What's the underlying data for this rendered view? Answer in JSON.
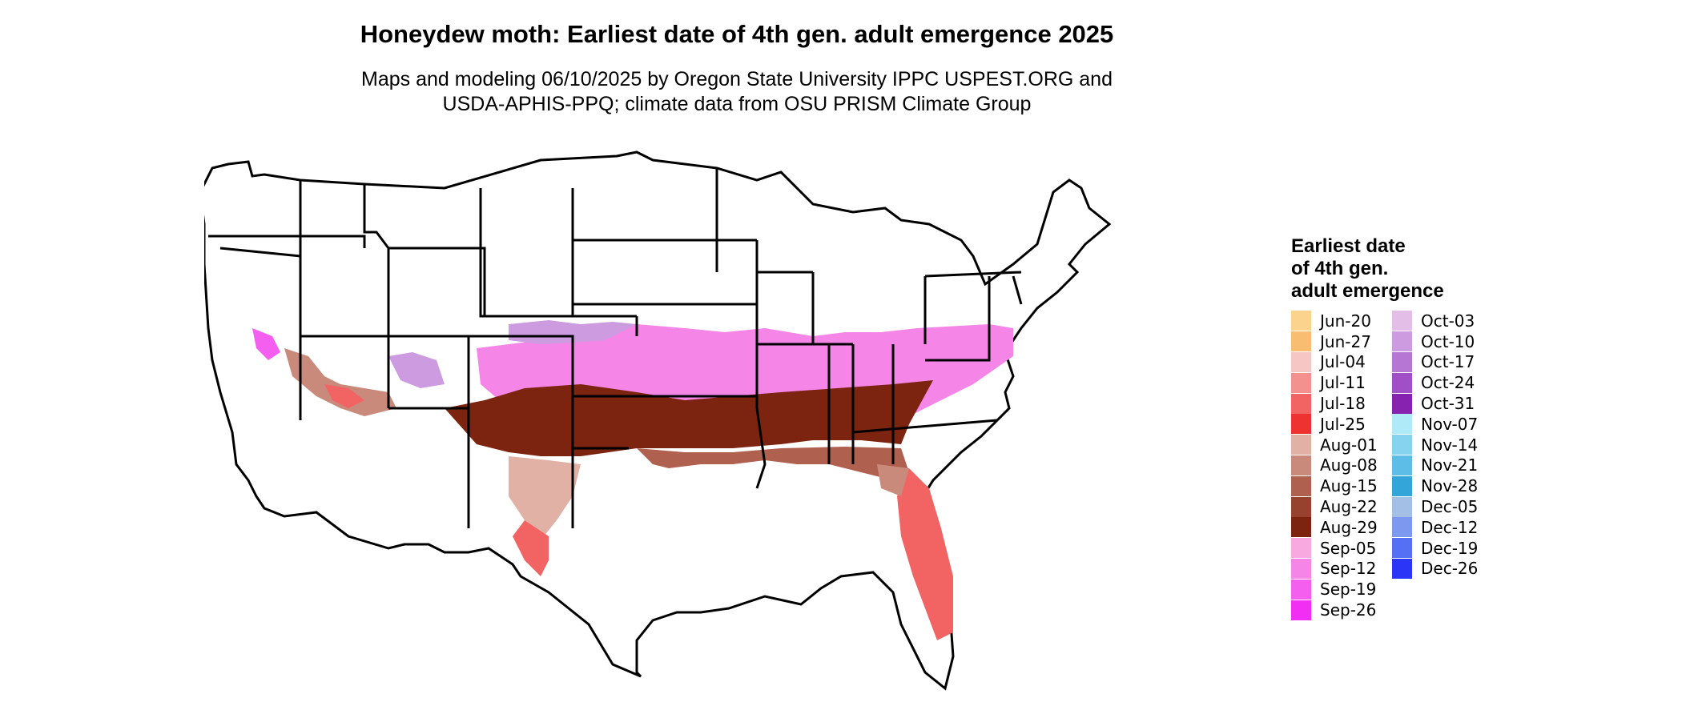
{
  "title": "Honeydew moth: Earliest date of 4th gen. adult emergence 2025",
  "subtitle_lines": [
    "Maps and modeling 06/10/2025 by Oregon State University IPPC USPEST.ORG and",
    "USDA-APHIS-PPQ; climate data from OSU PRISM Climate Group"
  ],
  "legend": {
    "title_lines": [
      "Earliest date",
      "of 4th gen.",
      "adult emergence"
    ],
    "columns": [
      [
        {
          "label": "Jun-20",
          "color": "#fbd38d"
        },
        {
          "label": "Jun-27",
          "color": "#f9bd72"
        },
        {
          "label": "Jul-04",
          "color": "#f6c6c4"
        },
        {
          "label": "Jul-11",
          "color": "#f3918f"
        },
        {
          "label": "Jul-18",
          "color": "#f26464"
        },
        {
          "label": "Jul-25",
          "color": "#ee3232"
        },
        {
          "label": "Aug-01",
          "color": "#e0b1a4"
        },
        {
          "label": "Aug-08",
          "color": "#c98a7c"
        },
        {
          "label": "Aug-15",
          "color": "#b0604f"
        },
        {
          "label": "Aug-22",
          "color": "#96422f"
        },
        {
          "label": "Aug-29",
          "color": "#7d2410"
        },
        {
          "label": "Sep-05",
          "color": "#f7a9e0"
        },
        {
          "label": "Sep-12",
          "color": "#f585e6"
        },
        {
          "label": "Sep-19",
          "color": "#f45ff0"
        },
        {
          "label": "Sep-26",
          "color": "#f22ef4"
        }
      ],
      [
        {
          "label": "Oct-03",
          "color": "#e3bfe8"
        },
        {
          "label": "Oct-10",
          "color": "#cc9be0"
        },
        {
          "label": "Oct-17",
          "color": "#b676d4"
        },
        {
          "label": "Oct-24",
          "color": "#a04fc6"
        },
        {
          "label": "Oct-31",
          "color": "#8722b0"
        },
        {
          "label": "Nov-07",
          "color": "#aeeaf8"
        },
        {
          "label": "Nov-14",
          "color": "#86d3ef"
        },
        {
          "label": "Nov-21",
          "color": "#5ebde6"
        },
        {
          "label": "Nov-28",
          "color": "#34a5d9"
        },
        {
          "label": "Dec-05",
          "color": "#a3bfe6"
        },
        {
          "label": "Dec-12",
          "color": "#7d98ef"
        },
        {
          "label": "Dec-19",
          "color": "#5570f3"
        },
        {
          "label": "Dec-26",
          "color": "#2a35f7"
        }
      ]
    ]
  },
  "map": {
    "region": "contiguous-united-states",
    "border_color": "#000000",
    "no_data_color": "#ffffff"
  }
}
